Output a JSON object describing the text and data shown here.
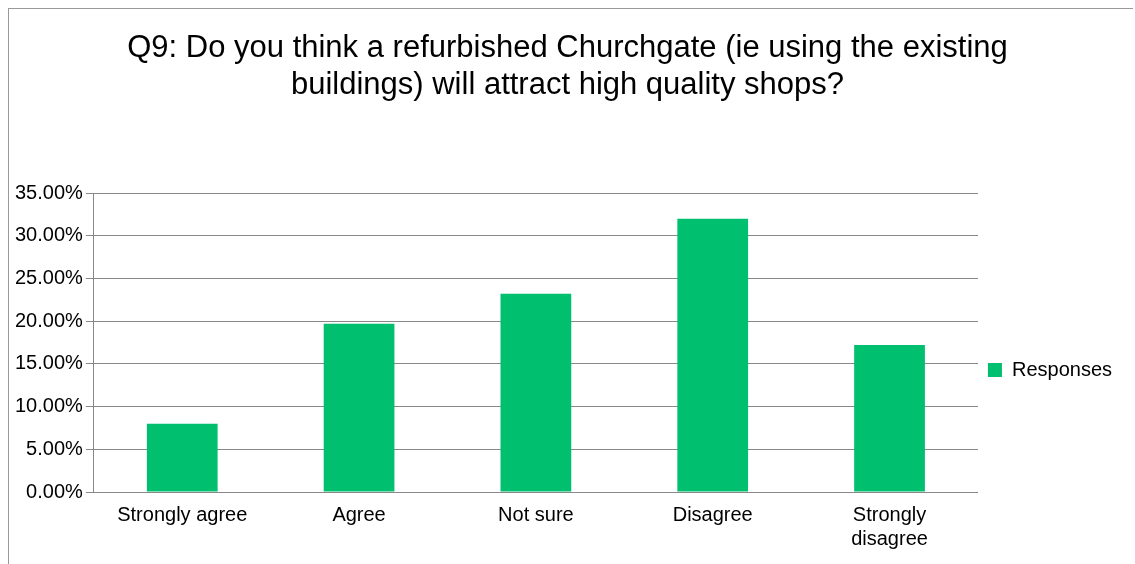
{
  "chart_data": {
    "type": "bar",
    "title": "Q9: Do you think a refurbished Churchgate (ie using the existing buildings) will attract high quality shops?",
    "categories": [
      "Strongly agree",
      "Agree",
      "Not sure",
      "Disagree",
      "Strongly disagree"
    ],
    "series": [
      {
        "name": "Responses",
        "color": "#00bf6f",
        "values": [
          8.0,
          19.7,
          23.2,
          32.0,
          17.2
        ]
      }
    ],
    "ylim": [
      0,
      35
    ],
    "yticks": [
      {
        "value": 0,
        "label": "0.00%"
      },
      {
        "value": 5,
        "label": "5.00%"
      },
      {
        "value": 10,
        "label": "10.00%"
      },
      {
        "value": 15,
        "label": "15.00%"
      },
      {
        "value": 20,
        "label": "20.00%"
      },
      {
        "value": 25,
        "label": "25.00%"
      },
      {
        "value": 30,
        "label": "30.00%"
      },
      {
        "value": 35,
        "label": "35.00%"
      }
    ],
    "grid": "y",
    "legend": "right"
  }
}
